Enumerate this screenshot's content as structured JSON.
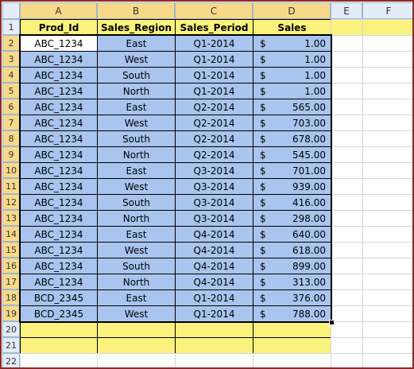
{
  "sheet": {
    "column_headers": [
      "A",
      "B",
      "C",
      "D",
      "E",
      "F"
    ],
    "row_numbers": [
      1,
      2,
      3,
      4,
      5,
      6,
      7,
      8,
      9,
      10,
      11,
      12,
      13,
      14,
      15,
      16,
      17,
      18,
      19,
      20,
      21,
      22
    ],
    "header": [
      "Prod_Id",
      "Sales_Region",
      "Sales_Period",
      "Sales"
    ],
    "rows": [
      [
        "ABC_1234",
        "East",
        "Q1-2014",
        "$",
        "1.00"
      ],
      [
        "ABC_1234",
        "West",
        "Q1-2014",
        "$",
        "1.00"
      ],
      [
        "ABC_1234",
        "South",
        "Q1-2014",
        "$",
        "1.00"
      ],
      [
        "ABC_1234",
        "North",
        "Q1-2014",
        "$",
        "1.00"
      ],
      [
        "ABC_1234",
        "East",
        "Q2-2014",
        "$",
        "565.00"
      ],
      [
        "ABC_1234",
        "West",
        "Q2-2014",
        "$",
        "703.00"
      ],
      [
        "ABC_1234",
        "South",
        "Q2-2014",
        "$",
        "678.00"
      ],
      [
        "ABC_1234",
        "North",
        "Q2-2014",
        "$",
        "545.00"
      ],
      [
        "ABC_1234",
        "East",
        "Q3-2014",
        "$",
        "701.00"
      ],
      [
        "ABC_1234",
        "West",
        "Q3-2014",
        "$",
        "939.00"
      ],
      [
        "ABC_1234",
        "South",
        "Q3-2014",
        "$",
        "416.00"
      ],
      [
        "ABC_1234",
        "North",
        "Q3-2014",
        "$",
        "298.00"
      ],
      [
        "ABC_1234",
        "East",
        "Q4-2014",
        "$",
        "640.00"
      ],
      [
        "ABC_1234",
        "West",
        "Q4-2014",
        "$",
        "618.00"
      ],
      [
        "ABC_1234",
        "South",
        "Q4-2014",
        "$",
        "899.00"
      ],
      [
        "ABC_1234",
        "North",
        "Q4-2014",
        "$",
        "313.00"
      ],
      [
        "BCD_2345",
        "East",
        "Q1-2014",
        "$",
        "376.00"
      ],
      [
        "BCD_2345",
        "West",
        "Q1-2014",
        "$",
        "788.00"
      ]
    ]
  }
}
